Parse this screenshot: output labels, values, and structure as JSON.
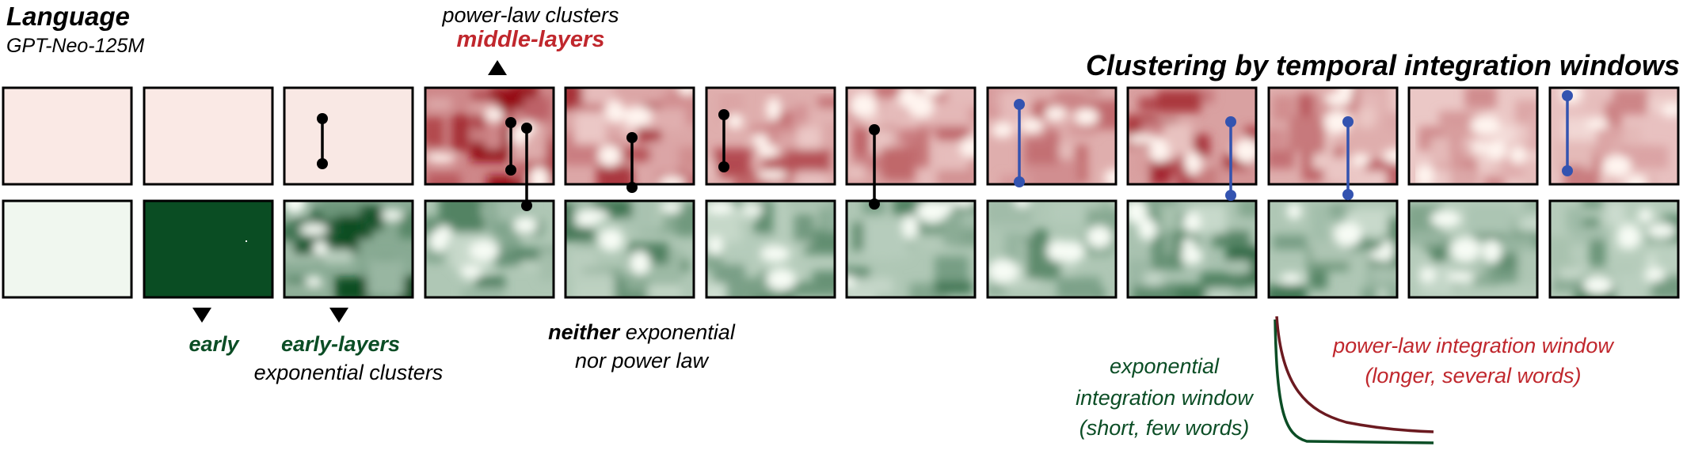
{
  "header": {
    "title": "Language",
    "model": "GPT-Neo-125M",
    "heading": "Clustering by temporal integration windows"
  },
  "annotations": {
    "power_law_line1": "power-law clusters",
    "power_law_line2": "middle-layers",
    "early": "early",
    "early_layers_line1": "early-layers",
    "early_layers_line2": "exponential clusters",
    "neither_bold": "neither",
    "neither_rest": " exponential",
    "neither_line2": "nor power law"
  },
  "legend": {
    "exponential_lines": [
      "exponential",
      "integration window",
      "(short, few words)"
    ],
    "power_law_lines": [
      "power-law integration window",
      "(longer, several words)"
    ]
  },
  "colors": {
    "red_series": "#c0272d",
    "green_series": "#0b4d25",
    "black_link": "#000000",
    "blue_link": "#3353b0"
  },
  "panels": [
    {
      "layer": 1,
      "red_intensity": 0.05,
      "green_intensity": 0.03,
      "link": null
    },
    {
      "layer": 2,
      "red_intensity": 0.05,
      "green_intensity": 1.0,
      "link": null
    },
    {
      "layer": 3,
      "red_intensity": 0.1,
      "green_intensity": 0.85,
      "link": "black"
    },
    {
      "layer": 4,
      "red_intensity": 0.85,
      "green_intensity": 0.55,
      "link": "black"
    },
    {
      "layer": 5,
      "red_intensity": 0.6,
      "green_intensity": 0.55,
      "link": "black"
    },
    {
      "layer": 6,
      "red_intensity": 0.55,
      "green_intensity": 0.5,
      "link": "black"
    },
    {
      "layer": 7,
      "red_intensity": 0.45,
      "green_intensity": 0.55,
      "link": "black"
    },
    {
      "layer": 8,
      "red_intensity": 0.55,
      "green_intensity": 0.55,
      "link": "blue"
    },
    {
      "layer": 9,
      "red_intensity": 0.65,
      "green_intensity": 0.6,
      "link": "blue"
    },
    {
      "layer": 10,
      "red_intensity": 0.55,
      "green_intensity": 0.55,
      "link": "blue"
    },
    {
      "layer": 11,
      "red_intensity": 0.35,
      "green_intensity": 0.5,
      "link": null
    },
    {
      "layer": 12,
      "red_intensity": 0.4,
      "green_intensity": 0.5,
      "link": "blue"
    }
  ]
}
